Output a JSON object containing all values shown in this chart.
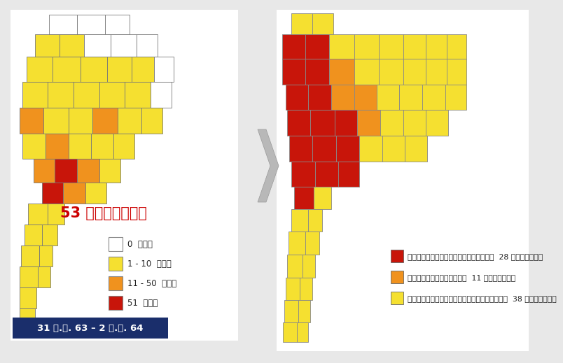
{
  "background_color": "#e8e8e8",
  "date_box_color": "#1a2e6b",
  "date_text": "31 ธ.ค. 63 – 2 ม.ค. 64",
  "date_text_color": "#ffffff",
  "count_text": "53 จังหวัด",
  "count_text_color": "#cc0000",
  "yellow": "#f5e030",
  "orange": "#f0921e",
  "red": "#c8150a",
  "white": "#ffffff",
  "gray_arrow": "#b0b0b0",
  "left_legend": [
    {
      "color": "#ffffff",
      "label": "0  ราย",
      "edge": "#888888"
    },
    {
      "color": "#f5e030",
      "label": "1 - 10  ราย",
      "edge": "#888888"
    },
    {
      "color": "#f0921e",
      "label": "11 - 50  ราย",
      "edge": "#888888"
    },
    {
      "color": "#c8150a",
      "label": "51  ราย",
      "edge": "#888888"
    }
  ],
  "right_legend": [
    {
      "color": "#c8150a",
      "label": "พื้นที่ควบคุมสูงสุด  28 จังหวัด"
    },
    {
      "color": "#f0921e",
      "label": "พื้นที่ควบคุม  11 จังหวัด"
    },
    {
      "color": "#f5e030",
      "label": "พื้นที่เฝ้าระวังสูงสุด  38 จังหวัด"
    }
  ]
}
